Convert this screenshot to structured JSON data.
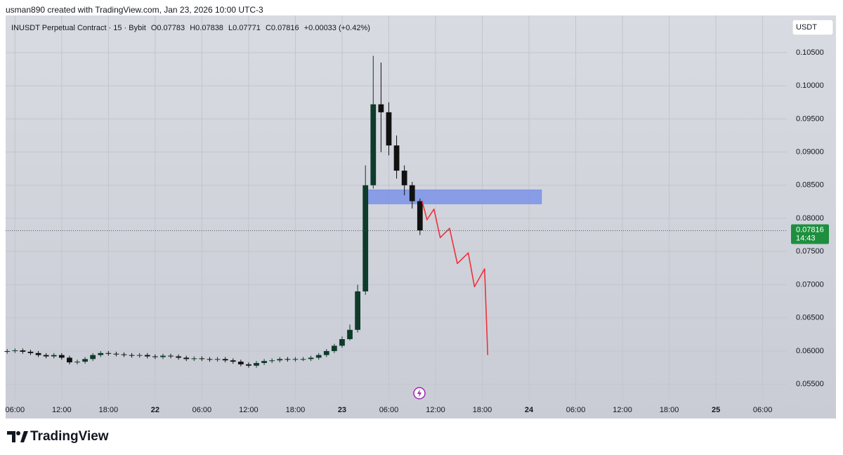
{
  "header": {
    "byline": "usman890 created with TradingView.com, Jan 23, 2026 10:00 UTC-3",
    "brand": "TradingView"
  },
  "chart_data": {
    "type": "candlestick",
    "title": "INUSDT Perpetual Contract · 15 · Bybit",
    "ohlc_legend": [
      "O0.07783",
      "H0.07838",
      "L0.07771",
      "C0.07816",
      "+0.00033 (+0.42%)"
    ],
    "currency": "USDT",
    "up_color": "#0e3b2a",
    "down_color": "#111111",
    "grid": true,
    "x": [
      5,
      6,
      7,
      8,
      9,
      10,
      11,
      12,
      13,
      14,
      15,
      16,
      17,
      18,
      19,
      20,
      21,
      22,
      23,
      24,
      25,
      26,
      27,
      28,
      29,
      30,
      31,
      32,
      33,
      34,
      35,
      36,
      37,
      38,
      39,
      40,
      41,
      42,
      43,
      44,
      45,
      46,
      47,
      48,
      49,
      50,
      51,
      52,
      53,
      54,
      55,
      56,
      57,
      58
    ],
    "open": [
      0.0599,
      0.06,
      0.0601,
      0.0599,
      0.0597,
      0.0594,
      0.0592,
      0.0594,
      0.059,
      0.0583,
      0.0584,
      0.0588,
      0.0594,
      0.0597,
      0.0596,
      0.0595,
      0.0594,
      0.0593,
      0.0594,
      0.0592,
      0.0591,
      0.0593,
      0.0592,
      0.059,
      0.0588,
      0.0589,
      0.0588,
      0.0587,
      0.0588,
      0.0586,
      0.0584,
      0.058,
      0.0578,
      0.0582,
      0.0585,
      0.0586,
      0.0588,
      0.0587,
      0.0588,
      0.0588,
      0.059,
      0.0594,
      0.06,
      0.0608,
      0.0618,
      0.0632,
      0.069,
      0.085,
      0.0972,
      0.096,
      0.091,
      0.0872,
      0.085,
      0.0826
    ],
    "high": [
      0.0603,
      0.0604,
      0.0604,
      0.0602,
      0.06,
      0.0597,
      0.0597,
      0.0597,
      0.0593,
      0.0587,
      0.0591,
      0.0597,
      0.06,
      0.06,
      0.0599,
      0.0598,
      0.0597,
      0.0597,
      0.0597,
      0.0595,
      0.0596,
      0.0596,
      0.0595,
      0.0593,
      0.0592,
      0.0592,
      0.0591,
      0.0591,
      0.0591,
      0.0589,
      0.0587,
      0.0583,
      0.0585,
      0.0588,
      0.0589,
      0.0591,
      0.0591,
      0.0591,
      0.0591,
      0.0593,
      0.0597,
      0.0603,
      0.0611,
      0.0622,
      0.064,
      0.07,
      0.088,
      0.1045,
      0.1035,
      0.0975,
      0.0925,
      0.088,
      0.0855,
      0.083
    ],
    "low": [
      0.0596,
      0.0597,
      0.0596,
      0.0594,
      0.0591,
      0.0589,
      0.0589,
      0.0587,
      0.058,
      0.058,
      0.0581,
      0.0585,
      0.0591,
      0.0593,
      0.0592,
      0.0591,
      0.059,
      0.059,
      0.0589,
      0.0588,
      0.0588,
      0.0589,
      0.0587,
      0.0585,
      0.0585,
      0.0585,
      0.0584,
      0.0584,
      0.0583,
      0.0581,
      0.0577,
      0.0575,
      0.0575,
      0.0579,
      0.0582,
      0.0583,
      0.0584,
      0.0584,
      0.0585,
      0.0585,
      0.0587,
      0.0591,
      0.0597,
      0.0605,
      0.0616,
      0.0628,
      0.0685,
      0.0845,
      0.09,
      0.0895,
      0.086,
      0.0835,
      0.0815,
      0.0775
    ],
    "close": [
      0.06,
      0.0601,
      0.0599,
      0.0597,
      0.0594,
      0.0592,
      0.0594,
      0.059,
      0.0583,
      0.0584,
      0.0588,
      0.0594,
      0.0597,
      0.0596,
      0.0595,
      0.0594,
      0.0593,
      0.0594,
      0.0592,
      0.0591,
      0.0593,
      0.0592,
      0.059,
      0.0588,
      0.0589,
      0.0588,
      0.0587,
      0.0588,
      0.0586,
      0.0584,
      0.058,
      0.0578,
      0.0582,
      0.0585,
      0.0586,
      0.0588,
      0.0587,
      0.0588,
      0.0588,
      0.059,
      0.0594,
      0.06,
      0.0608,
      0.0618,
      0.0632,
      0.069,
      0.085,
      0.0972,
      0.096,
      0.091,
      0.0872,
      0.085,
      0.0826,
      0.0782
    ],
    "xlim": [
      4.8,
      105.1
    ],
    "ylim": [
      0.0528,
      0.1106
    ],
    "xticks": [
      {
        "value": 6,
        "label": "06:00"
      },
      {
        "value": 12,
        "label": "12:00"
      },
      {
        "value": 18,
        "label": "18:00"
      },
      {
        "value": 24,
        "label": "22"
      },
      {
        "value": 30,
        "label": "06:00"
      },
      {
        "value": 36,
        "label": "12:00"
      },
      {
        "value": 42,
        "label": "18:00"
      },
      {
        "value": 48,
        "label": "23"
      },
      {
        "value": 54,
        "label": "06:00"
      },
      {
        "value": 60,
        "label": "12:00"
      },
      {
        "value": 66,
        "label": "18:00"
      },
      {
        "value": 72,
        "label": "24"
      },
      {
        "value": 78,
        "label": "06:00"
      },
      {
        "value": 84,
        "label": "12:00"
      },
      {
        "value": 90,
        "label": "18:00"
      },
      {
        "value": 96,
        "label": "25"
      },
      {
        "value": 102,
        "label": "06:00"
      }
    ],
    "yticks": [
      {
        "value": 0.055,
        "label": "0.05500"
      },
      {
        "value": 0.06,
        "label": "0.06000"
      },
      {
        "value": 0.065,
        "label": "0.06500"
      },
      {
        "value": 0.07,
        "label": "0.07000"
      },
      {
        "value": 0.075,
        "label": "0.07500"
      },
      {
        "value": 0.08,
        "label": "0.08000"
      },
      {
        "value": 0.085,
        "label": "0.08500"
      },
      {
        "value": 0.09,
        "label": "0.09000"
      },
      {
        "value": 0.095,
        "label": "0.09500"
      },
      {
        "value": 0.1,
        "label": "0.10000"
      },
      {
        "value": 0.105,
        "label": "0.10500"
      }
    ],
    "last_price": {
      "value": 0.07816,
      "label": "0.07816",
      "countdown": "14:43",
      "color": "#1e8f3e"
    },
    "zone": {
      "x": [
        51.3,
        73.6
      ],
      "y": [
        0.0822,
        0.0843
      ],
      "color": "#7b93e6"
    },
    "projection": {
      "color": "#f0303a",
      "x": [
        58.3,
        58.9,
        59.8,
        60.6,
        61.8,
        62.8,
        64.2,
        65.0,
        66.3,
        66.7
      ],
      "y": [
        0.0825,
        0.0798,
        0.0814,
        0.0771,
        0.0785,
        0.0732,
        0.0748,
        0.0697,
        0.0724,
        0.0594
      ]
    }
  }
}
